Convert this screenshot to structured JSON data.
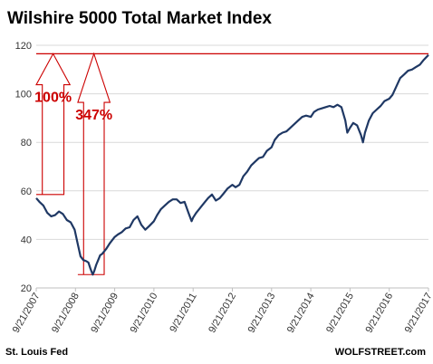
{
  "chart_data": {
    "type": "line",
    "title": "Wilshire 5000 Total Market Index",
    "xlabel": "",
    "ylabel": "",
    "ylim": [
      20,
      120
    ],
    "yticks": [
      20,
      40,
      60,
      80,
      100,
      120
    ],
    "xtick_labels": [
      "9/21/2007",
      "9/21/2008",
      "9/21/2009",
      "9/21/2010",
      "9/21/2011",
      "9/21/2012",
      "9/21/2013",
      "9/21/2014",
      "9/21/2015",
      "9/21/2016",
      "9/21/2017"
    ],
    "xlim": [
      2007.72,
      2017.72
    ],
    "grid": "horizontal",
    "series": [
      {
        "color": "#1f3864",
        "x": [
          2007.72,
          2007.8,
          2007.9,
          2008.0,
          2008.1,
          2008.2,
          2008.3,
          2008.4,
          2008.5,
          2008.6,
          2008.7,
          2008.78,
          2008.85,
          2008.92,
          2009.0,
          2009.05,
          2009.1,
          2009.16,
          2009.2,
          2009.25,
          2009.3,
          2009.35,
          2009.4,
          2009.5,
          2009.6,
          2009.72,
          2009.8,
          2009.9,
          2010.0,
          2010.1,
          2010.2,
          2010.3,
          2010.4,
          2010.5,
          2010.6,
          2010.72,
          2010.8,
          2010.9,
          2011.0,
          2011.1,
          2011.2,
          2011.3,
          2011.4,
          2011.5,
          2011.6,
          2011.68,
          2011.72,
          2011.8,
          2011.9,
          2012.0,
          2012.1,
          2012.2,
          2012.3,
          2012.4,
          2012.5,
          2012.6,
          2012.72,
          2012.8,
          2012.9,
          2013.0,
          2013.1,
          2013.2,
          2013.3,
          2013.4,
          2013.5,
          2013.6,
          2013.72,
          2013.8,
          2013.9,
          2014.0,
          2014.1,
          2014.2,
          2014.3,
          2014.4,
          2014.5,
          2014.6,
          2014.72,
          2014.8,
          2014.9,
          2015.0,
          2015.1,
          2015.2,
          2015.3,
          2015.4,
          2015.5,
          2015.6,
          2015.65,
          2015.72,
          2015.8,
          2015.9,
          2016.0,
          2016.05,
          2016.1,
          2016.2,
          2016.3,
          2016.4,
          2016.5,
          2016.6,
          2016.72,
          2016.8,
          2016.9,
          2017.0,
          2017.1,
          2017.2,
          2017.3,
          2017.4,
          2017.5,
          2017.6,
          2017.72
        ],
        "y": [
          57.0,
          55.5,
          54.0,
          51.0,
          49.5,
          50.0,
          51.5,
          50.5,
          48.0,
          47.0,
          44.0,
          38.0,
          33.0,
          31.5,
          31.0,
          30.5,
          28.0,
          25.5,
          27.0,
          29.5,
          31.5,
          33.5,
          34.0,
          36.0,
          38.5,
          41.0,
          42.0,
          43.0,
          44.5,
          45.0,
          48.0,
          49.5,
          46.0,
          44.0,
          45.5,
          47.5,
          50.0,
          52.5,
          54.0,
          55.5,
          56.5,
          56.5,
          55.0,
          55.5,
          51.0,
          47.5,
          49.0,
          51.0,
          53.0,
          55.0,
          57.0,
          58.5,
          56.0,
          57.0,
          59.0,
          61.0,
          62.5,
          61.5,
          62.5,
          66.0,
          68.0,
          70.5,
          72.0,
          73.5,
          74.0,
          76.5,
          78.0,
          81.0,
          83.0,
          84.0,
          84.5,
          86.0,
          87.5,
          89.0,
          90.5,
          91.0,
          90.5,
          92.5,
          93.5,
          94.0,
          94.5,
          95.0,
          94.5,
          95.5,
          94.5,
          89.0,
          84.0,
          86.0,
          88.0,
          87.0,
          83.0,
          80.0,
          84.0,
          89.0,
          92.0,
          93.5,
          95.0,
          97.0,
          98.0,
          99.5,
          103.0,
          106.5,
          108.0,
          109.5,
          110.0,
          111.0,
          112.0,
          114.0,
          116.0
        ]
      }
    ],
    "annotations": [
      {
        "type": "hline",
        "y": 116.5,
        "color": "#cc0000"
      },
      {
        "type": "arrow",
        "label": "100%",
        "x_from": 2007.72,
        "x_to": 2008.58,
        "y_base": 58.5,
        "y_tip": 116.5,
        "color": "#cc0000"
      },
      {
        "type": "arrow",
        "label": "347%",
        "x_from": 2008.78,
        "x_to": 2009.6,
        "y_base": 25.5,
        "y_tip": 116.5,
        "color": "#cc0000"
      }
    ],
    "source_left": "St. Louis Fed",
    "source_right": "WOLFSTREET.com"
  }
}
